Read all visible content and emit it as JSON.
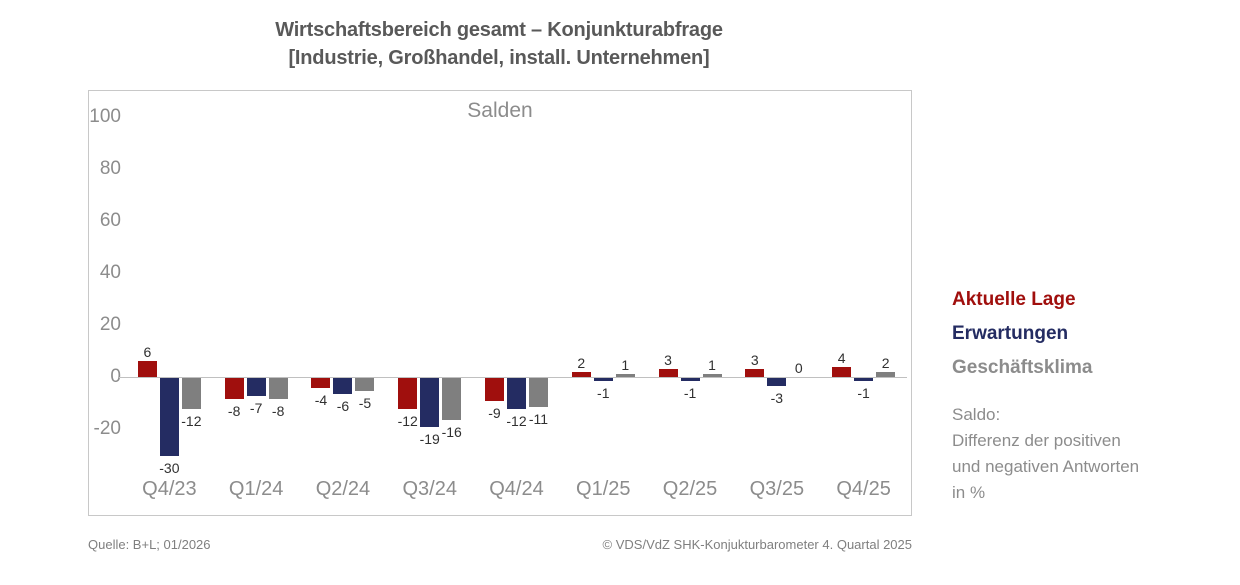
{
  "page": {
    "title_line1": "Wirtschaftsbereich gesamt – Konjunkturabfrage",
    "title_line2": "[Industrie, Großhandel, install. Unternehmen]"
  },
  "chart_data": {
    "type": "bar",
    "title": "Salden",
    "categories": [
      "Q4/23",
      "Q1/24",
      "Q2/24",
      "Q3/24",
      "Q4/24",
      "Q1/25",
      "Q2/25",
      "Q3/25",
      "Q4/25"
    ],
    "series": [
      {
        "name": "Aktuelle Lage",
        "color": "#a00f0d",
        "values": [
          6,
          -8,
          -4,
          -12,
          -9,
          2,
          3,
          3,
          4
        ]
      },
      {
        "name": "Erwartungen",
        "color": "#242c62",
        "values": [
          -30,
          -7,
          -6,
          -19,
          -12,
          -1,
          -1,
          -3,
          -1
        ]
      },
      {
        "name": "Geschäftsklima",
        "color": "#7f7f7f",
        "values": [
          -12,
          -8,
          -5,
          -16,
          -11,
          1,
          1,
          0,
          2
        ]
      }
    ],
    "yticks": [
      100,
      80,
      60,
      40,
      20,
      0,
      -20
    ],
    "ylim": [
      -38,
      108
    ],
    "grid": "zero line only",
    "value_labels": true,
    "legend_position": "right"
  },
  "legend": {
    "items": [
      {
        "label": "Aktuelle Lage",
        "color": "#a00f0d"
      },
      {
        "label": "Erwartungen",
        "color": "#242c62"
      },
      {
        "label": "Geschäftsklima",
        "color": "#8c8c8c"
      }
    ],
    "note_lines": [
      "Saldo:",
      "Differenz der positiven",
      "und negativen Antworten",
      "in %"
    ]
  },
  "footer": {
    "source": "Quelle: B+L; 01/2026",
    "copyright": "© VDS/VdZ SHK-Konjukturbarometer 4. Quartal 2025"
  }
}
